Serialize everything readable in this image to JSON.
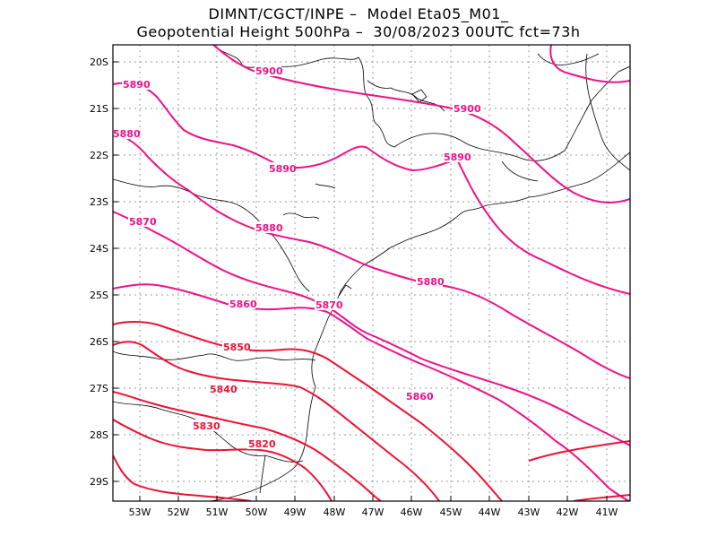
{
  "header": {
    "line1": "DIMNT/CGCT/INPE –  Model Eta05_M01_",
    "line2": "Geopotential Height 500hPa –  30/08/2023 00UTC fct=73h"
  },
  "axes": {
    "y_labels": [
      "20S",
      "21S",
      "22S",
      "23S",
      "24S",
      "25S",
      "26S",
      "27S",
      "28S",
      "29S"
    ],
    "x_labels": [
      "53W",
      "52W",
      "51W",
      "50W",
      "49W",
      "48W",
      "47W",
      "46W",
      "45W",
      "44W",
      "43W",
      "42W",
      "41W"
    ]
  },
  "colors": {
    "contour_magenta": "#ee1188",
    "contour_red": "#ee1133",
    "coastline": "#000000",
    "grid": "#999999"
  },
  "contour_labels": {
    "c5900a": "5900",
    "c5900b": "5900",
    "c5890a": "5890",
    "c5890b": "5890",
    "c5890c": "5890",
    "c5880a": "5880",
    "c5880b": "5880",
    "c5880c": "5880",
    "c5870a": "5870",
    "c5870b": "5870",
    "c5860a": "5860",
    "c5860b": "5860",
    "c5850": "5850",
    "c5840": "5840",
    "c5830": "5830",
    "c5820": "5820"
  }
}
